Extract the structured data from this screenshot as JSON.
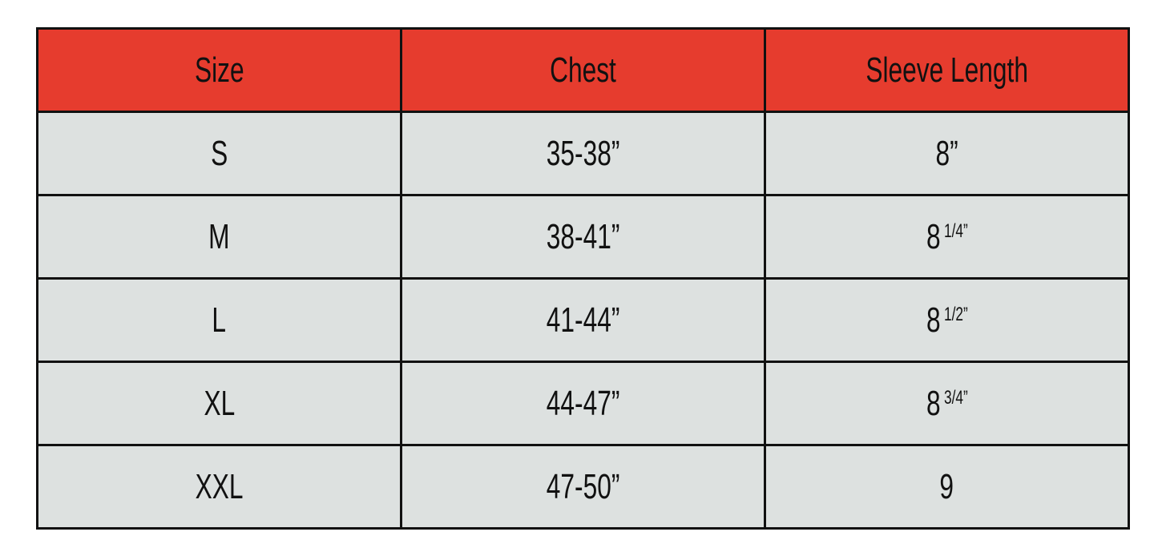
{
  "colors": {
    "header_bg": "#e63c2e",
    "body_bg": "#dde1e0",
    "border": "#111111"
  },
  "headers": [
    "Size",
    "Chest",
    "Sleeve Length"
  ],
  "rows": [
    {
      "size": "S",
      "chest": "35-38”",
      "sleeve": "8”",
      "sleeve_frac": ""
    },
    {
      "size": "M",
      "chest": "38-41”",
      "sleeve": "8",
      "sleeve_frac": "1/4”"
    },
    {
      "size": "L",
      "chest": "41-44”",
      "sleeve": "8",
      "sleeve_frac": "1/2”"
    },
    {
      "size": "XL",
      "chest": "44-47”",
      "sleeve": "8",
      "sleeve_frac": "3/4”"
    },
    {
      "size": "XXL",
      "chest": "47-50”",
      "sleeve": "9",
      "sleeve_frac": ""
    }
  ]
}
